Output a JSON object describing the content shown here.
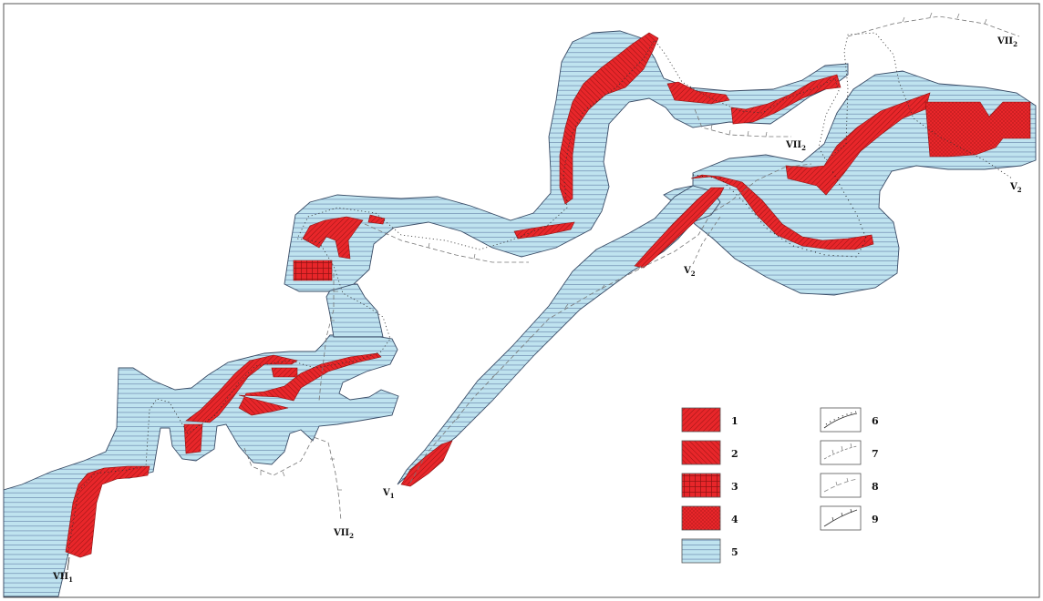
{
  "map": {
    "colors": {
      "water_fill": "#bfe3ef",
      "water_hatch": "#6f8cb0",
      "outline": "#3a4c66",
      "red": "#e8262a",
      "red_dark": "#8d1111",
      "route": "#555555"
    },
    "section_labels": [
      {
        "id": "vii1-bottom",
        "main": "VII",
        "sub": "1"
      },
      {
        "id": "vii2-bottom",
        "main": "VII",
        "sub": "2"
      },
      {
        "id": "v1",
        "main": "V",
        "sub": "1"
      },
      {
        "id": "v2-mid",
        "main": "V",
        "sub": "2"
      },
      {
        "id": "vii2-mid",
        "main": "VII",
        "sub": "2"
      },
      {
        "id": "v2-right",
        "main": "V",
        "sub": "2"
      },
      {
        "id": "vii2-top",
        "main": "VII",
        "sub": "2"
      }
    ]
  },
  "legend": {
    "items": [
      {
        "num": "1",
        "pattern": "hatch-right",
        "icon": "red-diagonal-hatch-swatch"
      },
      {
        "num": "2",
        "pattern": "hatch-left",
        "icon": "red-reverse-hatch-swatch"
      },
      {
        "num": "3",
        "pattern": "grid",
        "icon": "red-grid-swatch"
      },
      {
        "num": "4",
        "pattern": "dots",
        "icon": "red-dotted-swatch"
      },
      {
        "num": "5",
        "pattern": "water",
        "icon": "water-hatch-swatch"
      },
      {
        "num": "6",
        "line": "dotted-curve",
        "icon": "dotted-curve-line-icon"
      },
      {
        "num": "7",
        "line": "gray-ticks",
        "icon": "gray-ticked-line-icon"
      },
      {
        "num": "8",
        "line": "dashed-ticks",
        "icon": "dashed-ticked-line-icon"
      },
      {
        "num": "9",
        "line": "solid-ticks",
        "icon": "solid-ticked-line-icon"
      }
    ]
  }
}
